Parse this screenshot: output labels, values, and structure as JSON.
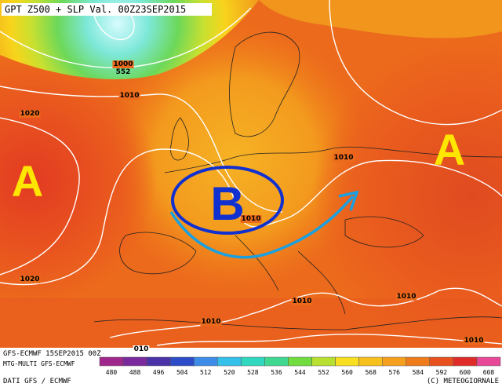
{
  "header": {
    "title": "GPT Z500 + SLP Val. 00Z23SEP2015"
  },
  "map": {
    "isobar_labels": [
      "1020",
      "1010",
      "1010",
      "1010",
      "1020",
      "1010",
      "1010",
      "1010",
      "1010",
      "010",
      "1000"
    ],
    "height_labels": [
      "552"
    ],
    "pressure_centers": [
      "A",
      "A",
      "B"
    ]
  },
  "legend": {
    "values": [
      480,
      488,
      496,
      504,
      512,
      520,
      528,
      536,
      544,
      552,
      560,
      568,
      576,
      584,
      592,
      600,
      608
    ],
    "colors": [
      "#a0288c",
      "#7a2a9c",
      "#4a32a8",
      "#2c4cc8",
      "#3c8ce8",
      "#34c0e8",
      "#30d8c0",
      "#40d890",
      "#70dc40",
      "#b8e030",
      "#f8e020",
      "#f8c01c",
      "#f4a01e",
      "#ee7c1c",
      "#e8501e",
      "#e02c28",
      "#e84898"
    ]
  },
  "footer": {
    "run": "GFS-ECMWF 15SEP2015 00Z",
    "model": "MTG-MULTI GFS-ECMWF",
    "source": "DATI GFS / ECMWF",
    "copyright": "(C) METEOGIORNALE"
  }
}
